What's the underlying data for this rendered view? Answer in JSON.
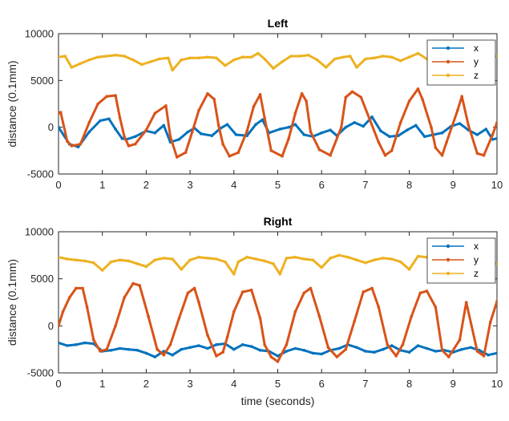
{
  "chart_data": [
    {
      "type": "line",
      "title": "Left",
      "xlabel": "",
      "ylabel": "distance (0.1mm)",
      "xlim": [
        0,
        10
      ],
      "ylim": [
        -5000,
        10000
      ],
      "xticks": [
        "0",
        "1",
        "2",
        "3",
        "4",
        "5",
        "6",
        "7",
        "8",
        "9",
        "10"
      ],
      "yticks": [
        "-5000",
        "0",
        "5000",
        "10000"
      ],
      "legend": [
        "x",
        "y",
        "z"
      ],
      "legend_position": "top-right",
      "series": [
        {
          "name": "x",
          "color": "#0072BD",
          "x": [
            0,
            0.25,
            0.45,
            0.7,
            0.95,
            1.15,
            1.3,
            1.45,
            1.55,
            1.75,
            2.0,
            2.2,
            2.4,
            2.55,
            2.75,
            2.95,
            3.1,
            3.25,
            3.5,
            3.7,
            3.85,
            4.05,
            4.3,
            4.5,
            4.65,
            4.8,
            5.05,
            5.25,
            5.4,
            5.6,
            5.8,
            6.0,
            6.2,
            6.35,
            6.55,
            6.75,
            6.95,
            7.15,
            7.35,
            7.55,
            7.75,
            7.95,
            8.15,
            8.35,
            8.55,
            8.75,
            8.95,
            9.15,
            9.35,
            9.55,
            9.75,
            9.9,
            10.0
          ],
          "y": [
            0,
            -1800,
            -2100,
            -500,
            700,
            900,
            -200,
            -1200,
            -1300,
            -1000,
            -400,
            -600,
            200,
            -1600,
            -1300,
            -500,
            -100,
            -700,
            -900,
            -100,
            300,
            -800,
            -900,
            300,
            800,
            -600,
            -200,
            0,
            300,
            -800,
            -1000,
            -600,
            -300,
            -900,
            0,
            500,
            100,
            1100,
            -400,
            -1000,
            -900,
            -300,
            200,
            -1000,
            -800,
            -600,
            100,
            400,
            -300,
            -800,
            -200,
            -1300,
            -1200
          ]
        },
        {
          "name": "y",
          "color": "#D95319",
          "x": [
            0,
            0.05,
            0.2,
            0.3,
            0.5,
            0.7,
            0.9,
            1.1,
            1.3,
            1.4,
            1.5,
            1.6,
            1.75,
            2.0,
            2.2,
            2.45,
            2.55,
            2.7,
            2.9,
            3.05,
            3.2,
            3.4,
            3.55,
            3.65,
            3.75,
            3.9,
            4.1,
            4.3,
            4.45,
            4.6,
            4.7,
            4.85,
            5.1,
            5.25,
            5.4,
            5.55,
            5.65,
            5.75,
            5.95,
            6.2,
            6.45,
            6.55,
            6.7,
            6.9,
            7.1,
            7.3,
            7.45,
            7.6,
            7.8,
            8.0,
            8.2,
            8.3,
            8.5,
            8.6,
            8.75,
            8.85,
            9.1,
            9.2,
            9.35,
            9.55,
            9.7,
            9.9,
            10.0
          ],
          "y": [
            1500,
            1600,
            -1500,
            -2000,
            -1800,
            500,
            2500,
            3300,
            3400,
            1000,
            -1000,
            -2000,
            -1800,
            -300,
            1500,
            2300,
            -1000,
            -3200,
            -2700,
            -500,
            1800,
            3600,
            3000,
            200,
            -1800,
            -3100,
            -2700,
            -400,
            2200,
            3500,
            1000,
            -2500,
            -3100,
            -1200,
            1500,
            3600,
            2800,
            -500,
            -2400,
            -3000,
            0,
            3200,
            3800,
            3200,
            800,
            -1600,
            -3000,
            -2500,
            500,
            2800,
            4100,
            3000,
            0,
            -2200,
            -3000,
            -1600,
            1800,
            3300,
            200,
            -2800,
            -3000,
            -800,
            500
          ]
        },
        {
          "name": "z",
          "color": "#EDB120",
          "x": [
            0,
            0.15,
            0.3,
            0.5,
            0.7,
            0.9,
            1.1,
            1.3,
            1.5,
            1.7,
            1.9,
            2.1,
            2.3,
            2.5,
            2.6,
            2.8,
            3.0,
            3.2,
            3.4,
            3.6,
            3.8,
            4.0,
            4.2,
            4.4,
            4.55,
            4.7,
            4.9,
            5.1,
            5.3,
            5.5,
            5.7,
            5.9,
            6.1,
            6.3,
            6.5,
            6.65,
            6.8,
            7.0,
            7.2,
            7.4,
            7.6,
            7.8,
            8.0,
            8.2,
            8.4,
            8.6,
            8.8,
            9.0,
            9.2,
            9.4,
            9.6,
            9.8,
            10.0
          ],
          "y": [
            7500,
            7600,
            6400,
            6800,
            7200,
            7500,
            7600,
            7700,
            7600,
            7200,
            6700,
            7000,
            7300,
            7400,
            6100,
            7200,
            7400,
            7400,
            7500,
            7400,
            6600,
            7200,
            7500,
            7500,
            7900,
            7300,
            6300,
            7000,
            7600,
            7600,
            7700,
            7200,
            6400,
            7300,
            7500,
            7600,
            6400,
            7300,
            7400,
            7600,
            7500,
            7100,
            7500,
            7900,
            7300,
            7500,
            7700,
            7600,
            7400,
            7500,
            6600,
            7400,
            7600
          ]
        }
      ]
    },
    {
      "type": "line",
      "title": "Right",
      "xlabel": "time (seconds)",
      "ylabel": "distance (0.1mm)",
      "xlim": [
        0,
        10
      ],
      "ylim": [
        -5000,
        10000
      ],
      "xticks": [
        "0",
        "1",
        "2",
        "3",
        "4",
        "5",
        "6",
        "7",
        "8",
        "9",
        "10"
      ],
      "yticks": [
        "-5000",
        "0",
        "5000",
        "10000"
      ],
      "legend": [
        "x",
        "y",
        "z"
      ],
      "legend_position": "top-right",
      "series": [
        {
          "name": "x",
          "color": "#0072BD",
          "x": [
            0,
            0.2,
            0.4,
            0.6,
            0.8,
            1.0,
            1.2,
            1.4,
            1.6,
            1.8,
            2.0,
            2.2,
            2.4,
            2.6,
            2.8,
            3.0,
            3.2,
            3.4,
            3.6,
            3.8,
            4.0,
            4.2,
            4.4,
            4.6,
            4.8,
            5.0,
            5.2,
            5.4,
            5.6,
            5.8,
            6.0,
            6.2,
            6.4,
            6.6,
            6.8,
            7.0,
            7.2,
            7.4,
            7.6,
            7.8,
            8.0,
            8.2,
            8.4,
            8.6,
            8.8,
            9.0,
            9.2,
            9.4,
            9.6,
            9.8,
            10.0
          ],
          "y": [
            -1800,
            -2100,
            -2000,
            -1800,
            -1900,
            -2700,
            -2600,
            -2400,
            -2500,
            -2600,
            -2900,
            -3300,
            -2700,
            -3100,
            -2500,
            -2300,
            -2100,
            -2400,
            -2000,
            -1900,
            -2500,
            -2000,
            -2200,
            -2600,
            -2700,
            -3200,
            -2700,
            -2400,
            -2600,
            -2900,
            -3000,
            -2600,
            -2400,
            -2000,
            -2300,
            -2700,
            -2800,
            -2500,
            -2100,
            -2600,
            -2800,
            -2100,
            -2400,
            -2700,
            -2600,
            -2800,
            -2500,
            -2300,
            -2600,
            -3100,
            -2900
          ]
        },
        {
          "name": "y",
          "color": "#D95319",
          "x": [
            0,
            0.1,
            0.25,
            0.4,
            0.55,
            0.65,
            0.8,
            0.95,
            1.1,
            1.3,
            1.5,
            1.7,
            1.85,
            2.05,
            2.25,
            2.4,
            2.55,
            2.75,
            2.95,
            3.1,
            3.2,
            3.4,
            3.6,
            3.75,
            3.85,
            4.0,
            4.2,
            4.4,
            4.6,
            4.7,
            4.85,
            5.0,
            5.2,
            5.4,
            5.6,
            5.75,
            5.95,
            6.15,
            6.35,
            6.55,
            6.75,
            6.95,
            7.15,
            7.3,
            7.5,
            7.7,
            7.85,
            8.05,
            8.25,
            8.4,
            8.6,
            8.75,
            8.9,
            9.15,
            9.3,
            9.55,
            9.7,
            9.85,
            10.0
          ],
          "y": [
            0,
            1500,
            3000,
            4000,
            4000,
            2000,
            -1500,
            -2700,
            -2500,
            0,
            3000,
            4500,
            4300,
            1000,
            -2500,
            -3100,
            -2000,
            800,
            3500,
            4000,
            2500,
            -1000,
            -3200,
            -2800,
            -1200,
            1500,
            3600,
            3800,
            800,
            -2000,
            -3300,
            -3800,
            -2000,
            1500,
            3500,
            4000,
            1000,
            -2300,
            -3300,
            -2500,
            500,
            3600,
            4000,
            2000,
            -2000,
            -3200,
            -2000,
            1000,
            3500,
            3700,
            2000,
            -2600,
            -3300,
            -1500,
            2500,
            -2700,
            -3200,
            400,
            2600
          ]
        },
        {
          "name": "z",
          "color": "#EDB120",
          "x": [
            0,
            0.2,
            0.4,
            0.6,
            0.8,
            1.0,
            1.2,
            1.4,
            1.6,
            1.8,
            2.0,
            2.2,
            2.4,
            2.6,
            2.8,
            3.0,
            3.2,
            3.4,
            3.6,
            3.8,
            4.0,
            4.1,
            4.3,
            4.5,
            4.7,
            4.9,
            5.05,
            5.2,
            5.4,
            5.6,
            5.8,
            6.0,
            6.2,
            6.4,
            6.6,
            6.8,
            7.0,
            7.2,
            7.4,
            7.6,
            7.8,
            8.0,
            8.2,
            8.4,
            8.6,
            8.8,
            9.0,
            9.2,
            9.4,
            9.6,
            9.8,
            10.0
          ],
          "y": [
            7300,
            7100,
            7000,
            6900,
            6700,
            5900,
            6800,
            7000,
            6900,
            6600,
            6300,
            7000,
            7200,
            7100,
            6000,
            7000,
            7300,
            7200,
            7100,
            6800,
            5500,
            6800,
            7300,
            7100,
            6900,
            6600,
            5500,
            7200,
            7300,
            7100,
            7000,
            6200,
            7200,
            7500,
            7300,
            7000,
            6700,
            7000,
            7200,
            7100,
            6800,
            6000,
            7400,
            7300,
            7100,
            6900,
            6700,
            7200,
            7300,
            7100,
            7000,
            6600
          ]
        }
      ]
    }
  ]
}
